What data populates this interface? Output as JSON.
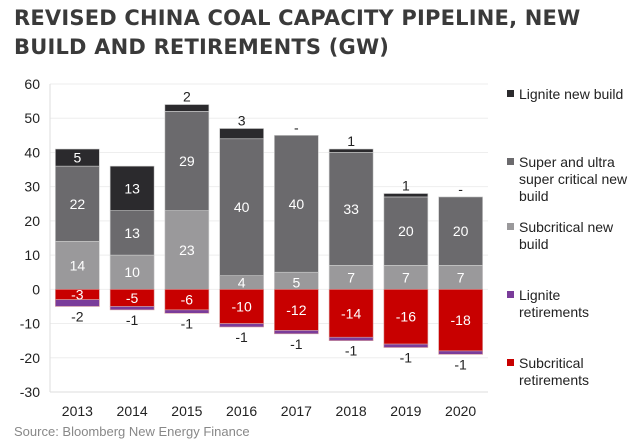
{
  "title_line1": "REVISED CHINA COAL CAPACITY PIPELINE, NEW",
  "title_line2": "BUILD AND RETIREMENTS (GW)",
  "source": "Source:  Bloomberg New Energy Finance",
  "chart_data": {
    "type": "bar",
    "stacked": true,
    "title": "Revised China coal capacity pipeline, new build and retirements (GW)",
    "xlabel": "",
    "ylabel": "",
    "categories": [
      "2013",
      "2014",
      "2015",
      "2016",
      "2017",
      "2018",
      "2019",
      "2020"
    ],
    "ylim": [
      -30,
      60
    ],
    "yticks": [
      60,
      50,
      40,
      30,
      20,
      10,
      0,
      -10,
      -20,
      -30
    ],
    "grid": true,
    "legend_position": "right",
    "series": [
      {
        "name": "Subcritical new build",
        "color": "#9a999b",
        "values": [
          14,
          10,
          23,
          4,
          5,
          7,
          7,
          7
        ],
        "labels": [
          "14",
          "10",
          "23",
          "4",
          "5",
          "7",
          "7",
          "7"
        ]
      },
      {
        "name": "Super and ultra super critical new build",
        "color": "#6b6a6d",
        "values": [
          22,
          13,
          29,
          40,
          40,
          33,
          20,
          20
        ],
        "labels": [
          "22",
          "13",
          "29",
          "40",
          "40",
          "33",
          "20",
          "20"
        ]
      },
      {
        "name": "Lignite new build",
        "color": "#2b2a2d",
        "values": [
          5,
          13,
          2,
          3,
          0,
          1,
          1,
          0
        ],
        "labels": [
          "5",
          "13",
          "2",
          "3",
          "-",
          "1",
          "1",
          "-"
        ]
      },
      {
        "name": "Subcritical retirements",
        "color": "#c80000",
        "values": [
          -3,
          -5,
          -6,
          -10,
          -12,
          -14,
          -16,
          -18
        ],
        "labels": [
          "-3",
          "-5",
          "-6",
          "-10",
          "-12",
          "-14",
          "-16",
          "-18"
        ]
      },
      {
        "name": "Lignite retirements",
        "color": "#7a3c9a",
        "values": [
          -2,
          -1,
          -1,
          -1,
          -1,
          -1,
          -1,
          -1
        ],
        "labels": [
          "-2",
          "-1",
          "-1",
          "-1",
          "-1",
          "-1",
          "-1",
          "-1"
        ]
      }
    ],
    "legend": [
      {
        "label": "Lignite new build",
        "color": "#2b2a2d"
      },
      {
        "label": "Super and ultra super critical new build",
        "color": "#6b6a6d"
      },
      {
        "label": "Subcritical new build",
        "color": "#9a999b"
      },
      {
        "label": "Lignite retirements",
        "color": "#7a3c9a"
      },
      {
        "label": "Subcritical retirements",
        "color": "#c80000"
      }
    ]
  }
}
